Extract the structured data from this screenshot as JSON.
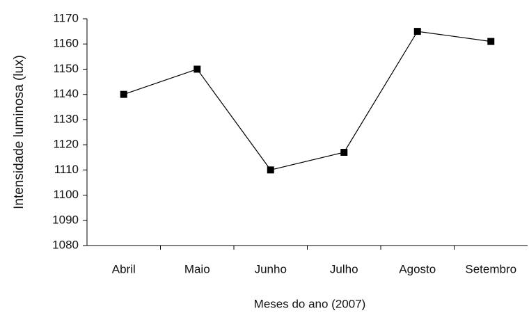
{
  "chart_data": {
    "type": "line",
    "x_label": "Meses do ano (2007)",
    "y_label": "Intensidade luminosa (lux)",
    "categories": [
      "Abril",
      "Maio",
      "Junho",
      "Julho",
      "Agosto",
      "Setembro"
    ],
    "series": [
      {
        "name": "Intensidade luminosa",
        "color": "#000000",
        "values": [
          1140,
          1150,
          1110,
          1117,
          1165,
          1161
        ]
      }
    ],
    "ylim": [
      1080,
      1170
    ],
    "yticks": [
      1080,
      1090,
      1100,
      1110,
      1120,
      1130,
      1140,
      1150,
      1160,
      1170
    ],
    "grid": false
  }
}
